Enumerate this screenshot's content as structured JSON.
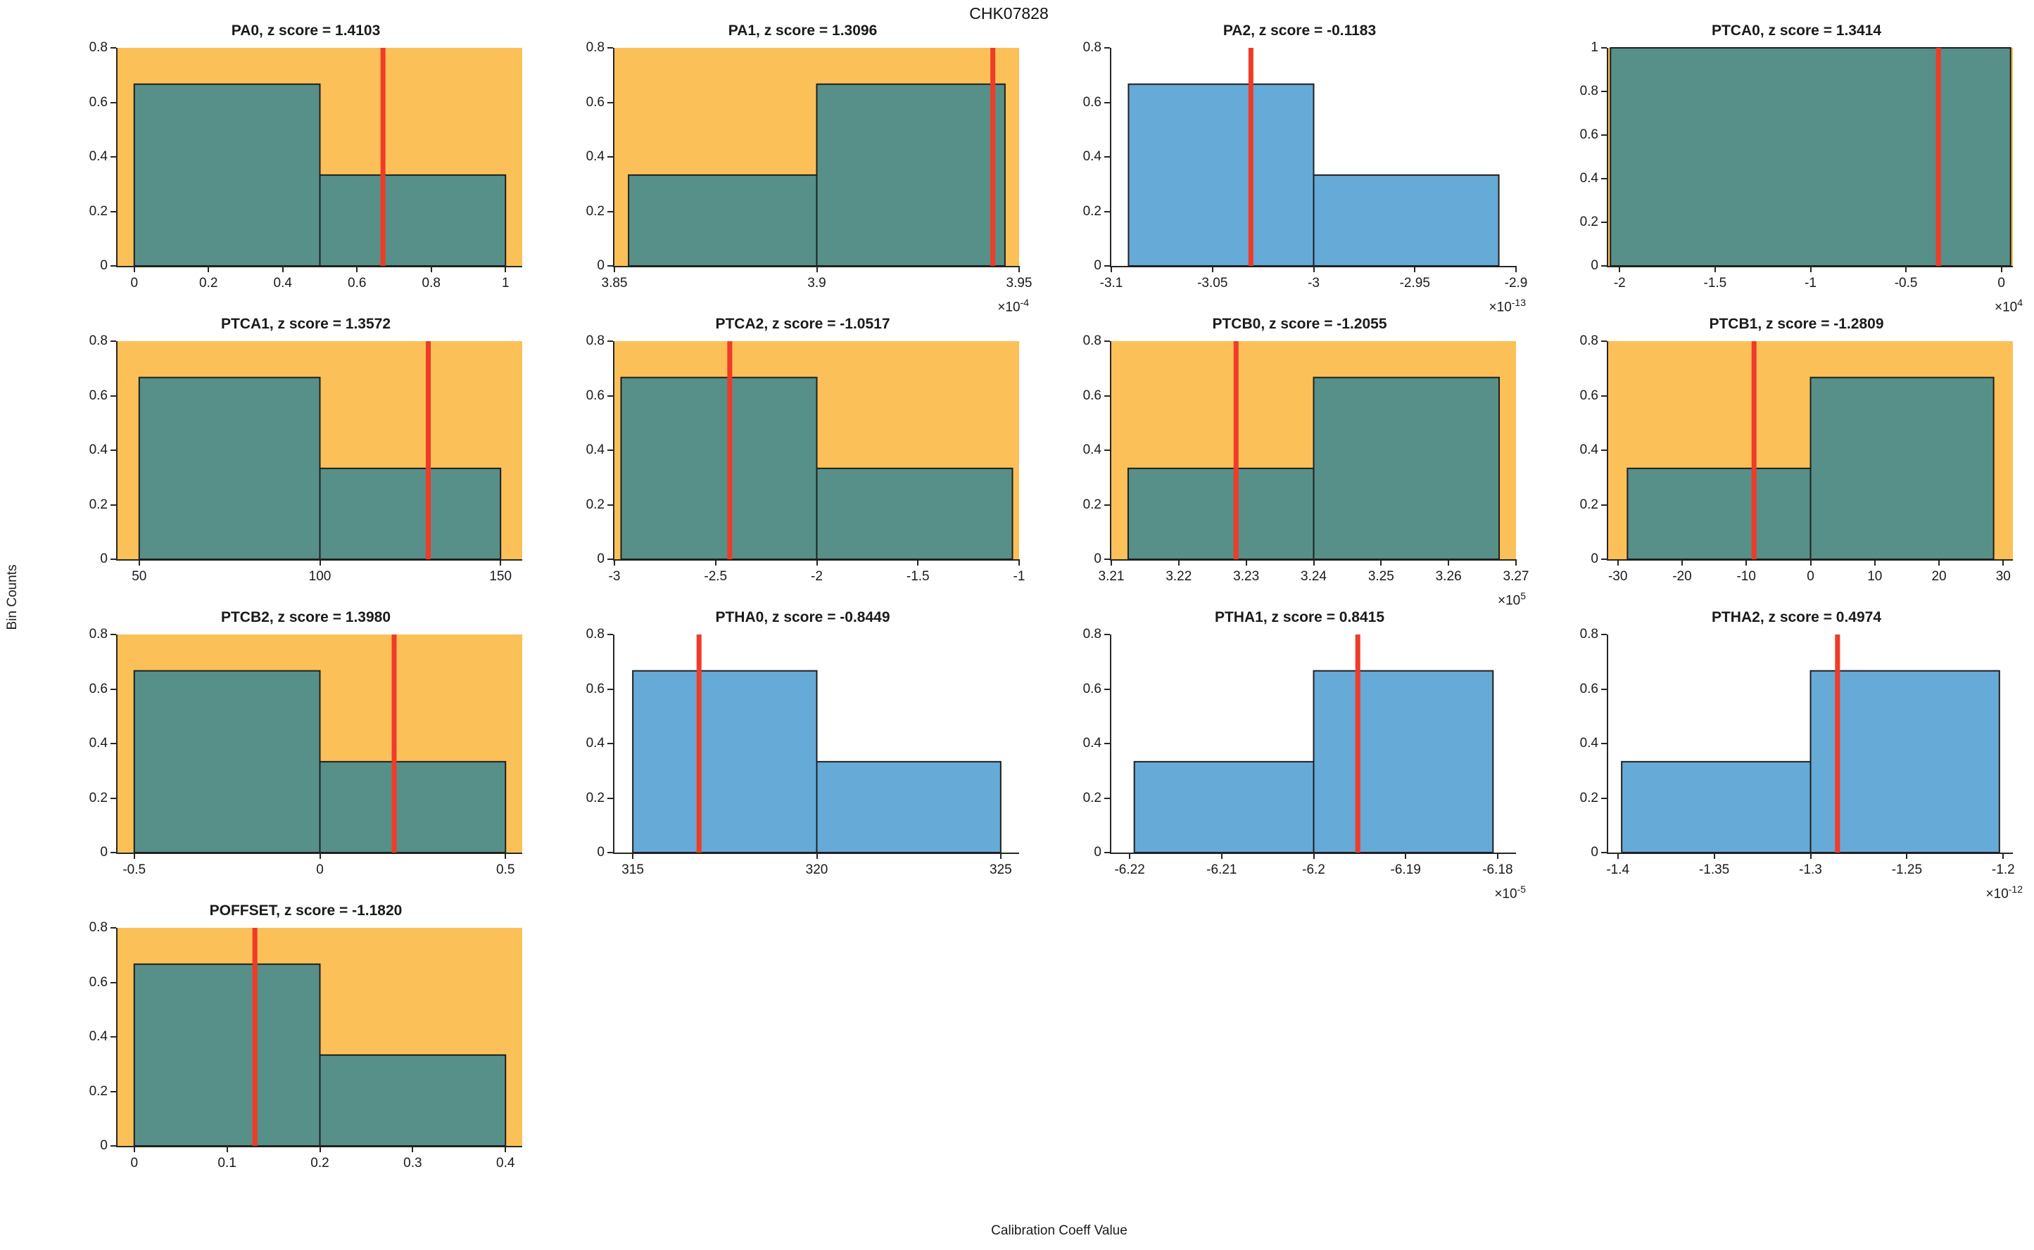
{
  "figure": {
    "title": "CHK07828",
    "xlabel": "Calibration Coeff Value",
    "ylabel": "Bin Counts",
    "exponent_prefix": "×10"
  },
  "colors": {
    "flagged_bg": "#fcc058",
    "normal_bg": "#ffffff",
    "flagged_bar": "#579089",
    "normal_bar": "#66aad7",
    "bar_edge": "#1f1f1f",
    "red_line": "#ef3b27",
    "axis": "#262626"
  },
  "chart_data": [
    {
      "type": "histogram",
      "name": "PA0",
      "title": "PA0, z score = 1.4103",
      "z_score": 1.4103,
      "flagged": true,
      "xlim": [
        -0.045,
        1.045
      ],
      "ylim": [
        0,
        0.8
      ],
      "xticks": [
        0,
        0.2,
        0.4,
        0.6,
        0.8,
        1
      ],
      "xtick_labels": [
        "0",
        "0.2",
        "0.4",
        "0.6",
        "0.8",
        "1"
      ],
      "yticks": [
        0,
        0.2,
        0.4,
        0.6,
        0.8
      ],
      "ytick_labels": [
        "0",
        "0.2",
        "0.4",
        "0.6",
        "0.8"
      ],
      "exponent": null,
      "bins": [
        {
          "x0": 0,
          "x1": 0.5,
          "height": 0.6667
        },
        {
          "x0": 0.5,
          "x1": 1,
          "height": 0.3333
        }
      ],
      "red_line_x": 0.67
    },
    {
      "type": "histogram",
      "name": "PA1",
      "title": "PA1, z score = 1.3096",
      "z_score": 1.3096,
      "flagged": true,
      "xlim": [
        3.85,
        3.95
      ],
      "ylim": [
        0,
        0.8
      ],
      "xticks": [
        3.85,
        3.9,
        3.95
      ],
      "xtick_labels": [
        "3.85",
        "3.9",
        "3.95"
      ],
      "yticks": [
        0,
        0.2,
        0.4,
        0.6,
        0.8
      ],
      "ytick_labels": [
        "0",
        "0.2",
        "0.4",
        "0.6",
        "0.8"
      ],
      "exponent": "-4",
      "bins": [
        {
          "x0": 3.8535,
          "x1": 3.9,
          "height": 0.3333
        },
        {
          "x0": 3.9,
          "x1": 3.9465,
          "height": 0.6667
        }
      ],
      "red_line_x": 3.9435
    },
    {
      "type": "histogram",
      "name": "PA2",
      "title": "PA2, z score = -0.1183",
      "z_score": -0.1183,
      "flagged": false,
      "xlim": [
        -3.1,
        -2.9
      ],
      "ylim": [
        0,
        0.8
      ],
      "xticks": [
        -3.1,
        -3.05,
        -3,
        -2.95,
        -2.9
      ],
      "xtick_labels": [
        "-3.1",
        "-3.05",
        "-3",
        "-2.95",
        "-2.9"
      ],
      "yticks": [
        0,
        0.2,
        0.4,
        0.6,
        0.8
      ],
      "ytick_labels": [
        "0",
        "0.2",
        "0.4",
        "0.6",
        "0.8"
      ],
      "exponent": "-13",
      "bins": [
        {
          "x0": -3.0915,
          "x1": -3.0,
          "height": 0.6667
        },
        {
          "x0": -3.0,
          "x1": -2.9085,
          "height": 0.3333
        }
      ],
      "red_line_x": -3.031
    },
    {
      "type": "histogram",
      "name": "PTCA0",
      "title": "PTCA0, z score = 1.3414",
      "z_score": 1.3414,
      "flagged": true,
      "xlim": [
        -2.06,
        0.06
      ],
      "ylim": [
        0,
        1
      ],
      "xticks": [
        -2,
        -1.5,
        -1,
        -0.5,
        0
      ],
      "xtick_labels": [
        "-2",
        "-1.5",
        "-1",
        "-0.5",
        "0"
      ],
      "yticks": [
        0,
        0.2,
        0.4,
        0.6,
        0.8,
        1
      ],
      "ytick_labels": [
        "0",
        "0.2",
        "0.4",
        "0.6",
        "0.8",
        "1"
      ],
      "exponent": "4",
      "bins": [
        {
          "x0": -2.048,
          "x1": 0.048,
          "height": 1.0
        }
      ],
      "red_line_x": -0.33
    },
    {
      "type": "histogram",
      "name": "PTCA1",
      "title": "PTCA1, z score = 1.3572",
      "z_score": 1.3572,
      "flagged": true,
      "xlim": [
        44,
        156
      ],
      "ylim": [
        0,
        0.8
      ],
      "xticks": [
        50,
        100,
        150
      ],
      "xtick_labels": [
        "50",
        "100",
        "150"
      ],
      "yticks": [
        0,
        0.2,
        0.4,
        0.6,
        0.8
      ],
      "ytick_labels": [
        "0",
        "0.2",
        "0.4",
        "0.6",
        "0.8"
      ],
      "exponent": null,
      "bins": [
        {
          "x0": 50,
          "x1": 100,
          "height": 0.6667
        },
        {
          "x0": 100,
          "x1": 150,
          "height": 0.3333
        }
      ],
      "red_line_x": 130
    },
    {
      "type": "histogram",
      "name": "PTCA2",
      "title": "PTCA2, z score = -1.0517",
      "z_score": -1.0517,
      "flagged": true,
      "xlim": [
        -3.0,
        -1.0
      ],
      "ylim": [
        0,
        0.8
      ],
      "xticks": [
        -3,
        -2.5,
        -2,
        -1.5,
        -1
      ],
      "xtick_labels": [
        "-3",
        "-2.5",
        "-2",
        "-1.5",
        "-1"
      ],
      "yticks": [
        0,
        0.2,
        0.4,
        0.6,
        0.8
      ],
      "ytick_labels": [
        "0",
        "0.2",
        "0.4",
        "0.6",
        "0.8"
      ],
      "exponent": null,
      "bins": [
        {
          "x0": -2.967,
          "x1": -2.0,
          "height": 0.6667
        },
        {
          "x0": -2.0,
          "x1": -1.033,
          "height": 0.3333
        }
      ],
      "red_line_x": -2.43
    },
    {
      "type": "histogram",
      "name": "PTCB0",
      "title": "PTCB0, z score = -1.2055",
      "z_score": -1.2055,
      "flagged": true,
      "xlim": [
        3.21,
        3.27
      ],
      "ylim": [
        0,
        0.8
      ],
      "xticks": [
        3.21,
        3.22,
        3.23,
        3.24,
        3.25,
        3.26,
        3.27
      ],
      "xtick_labels": [
        "3.21",
        "3.22",
        "3.23",
        "3.24",
        "3.25",
        "3.26",
        "3.27"
      ],
      "yticks": [
        0,
        0.2,
        0.4,
        0.6,
        0.8
      ],
      "ytick_labels": [
        "0",
        "0.2",
        "0.4",
        "0.6",
        "0.8"
      ],
      "exponent": "5",
      "bins": [
        {
          "x0": 3.2125,
          "x1": 3.24,
          "height": 0.3333
        },
        {
          "x0": 3.24,
          "x1": 3.2675,
          "height": 0.6667
        }
      ],
      "red_line_x": 3.2285
    },
    {
      "type": "histogram",
      "name": "PTCB1",
      "title": "PTCB1, z score = -1.2809",
      "z_score": -1.2809,
      "flagged": true,
      "xlim": [
        -31.5,
        31.5
      ],
      "ylim": [
        0,
        0.8
      ],
      "xticks": [
        -30,
        -20,
        -10,
        0,
        10,
        20,
        30
      ],
      "xtick_labels": [
        "-30",
        "-20",
        "-10",
        "0",
        "10",
        "20",
        "30"
      ],
      "yticks": [
        0,
        0.2,
        0.4,
        0.6,
        0.8
      ],
      "ytick_labels": [
        "0",
        "0.2",
        "0.4",
        "0.6",
        "0.8"
      ],
      "exponent": null,
      "bins": [
        {
          "x0": -28.5,
          "x1": 0,
          "height": 0.3333
        },
        {
          "x0": 0,
          "x1": 28.5,
          "height": 0.6667
        }
      ],
      "red_line_x": -8.8
    },
    {
      "type": "histogram",
      "name": "PTCB2",
      "title": "PTCB2, z score = 1.3980",
      "z_score": 1.398,
      "flagged": true,
      "xlim": [
        -0.545,
        0.545
      ],
      "ylim": [
        0,
        0.8
      ],
      "xticks": [
        -0.5,
        0,
        0.5
      ],
      "xtick_labels": [
        "-0.5",
        "0",
        "0.5"
      ],
      "yticks": [
        0,
        0.2,
        0.4,
        0.6,
        0.8
      ],
      "ytick_labels": [
        "0",
        "0.2",
        "0.4",
        "0.6",
        "0.8"
      ],
      "exponent": null,
      "bins": [
        {
          "x0": -0.5,
          "x1": 0,
          "height": 0.6667
        },
        {
          "x0": 0,
          "x1": 0.5,
          "height": 0.3333
        }
      ],
      "red_line_x": 0.2
    },
    {
      "type": "histogram",
      "name": "PTHA0",
      "title": "PTHA0, z score = -0.8449",
      "z_score": -0.8449,
      "flagged": false,
      "xlim": [
        314.5,
        325.5
      ],
      "ylim": [
        0,
        0.8
      ],
      "xticks": [
        315,
        320,
        325
      ],
      "xtick_labels": [
        "315",
        "320",
        "325"
      ],
      "yticks": [
        0,
        0.2,
        0.4,
        0.6,
        0.8
      ],
      "ytick_labels": [
        "0",
        "0.2",
        "0.4",
        "0.6",
        "0.8"
      ],
      "exponent": null,
      "bins": [
        {
          "x0": 315,
          "x1": 320,
          "height": 0.6667
        },
        {
          "x0": 320,
          "x1": 325,
          "height": 0.3333
        }
      ],
      "red_line_x": 316.8
    },
    {
      "type": "histogram",
      "name": "PTHA1",
      "title": "PTHA1, z score = 0.8415",
      "z_score": 0.8415,
      "flagged": false,
      "xlim": [
        -6.222,
        -6.178
      ],
      "ylim": [
        0,
        0.8
      ],
      "xticks": [
        -6.22,
        -6.21,
        -6.2,
        -6.19,
        -6.18
      ],
      "xtick_labels": [
        "-6.22",
        "-6.21",
        "-6.2",
        "-6.19",
        "-6.18"
      ],
      "yticks": [
        0,
        0.2,
        0.4,
        0.6,
        0.8
      ],
      "ytick_labels": [
        "0",
        "0.2",
        "0.4",
        "0.6",
        "0.8"
      ],
      "exponent": "-5",
      "bins": [
        {
          "x0": -6.2195,
          "x1": -6.2,
          "height": 0.3333
        },
        {
          "x0": -6.2,
          "x1": -6.1805,
          "height": 0.6667
        }
      ],
      "red_line_x": -6.1952
    },
    {
      "type": "histogram",
      "name": "PTHA2",
      "title": "PTHA2, z score = 0.4974",
      "z_score": 0.4974,
      "flagged": false,
      "xlim": [
        -1.405,
        -1.195
      ],
      "ylim": [
        0,
        0.8
      ],
      "xticks": [
        -1.4,
        -1.35,
        -1.3,
        -1.25,
        -1.2
      ],
      "xtick_labels": [
        "-1.4",
        "-1.35",
        "-1.3",
        "-1.25",
        "-1.2"
      ],
      "yticks": [
        0,
        0.2,
        0.4,
        0.6,
        0.8
      ],
      "ytick_labels": [
        "0",
        "0.2",
        "0.4",
        "0.6",
        "0.8"
      ],
      "exponent": "-12",
      "bins": [
        {
          "x0": -1.398,
          "x1": -1.3,
          "height": 0.3333
        },
        {
          "x0": -1.3,
          "x1": -1.202,
          "height": 0.6667
        }
      ],
      "red_line_x": -1.286
    },
    {
      "type": "histogram",
      "name": "POFFSET",
      "title": "POFFSET, z score = -1.1820",
      "z_score": -1.182,
      "flagged": true,
      "xlim": [
        -0.018,
        0.418
      ],
      "ylim": [
        0,
        0.8
      ],
      "xticks": [
        0,
        0.1,
        0.2,
        0.3,
        0.4
      ],
      "xtick_labels": [
        "0",
        "0.1",
        "0.2",
        "0.3",
        "0.4"
      ],
      "yticks": [
        0,
        0.2,
        0.4,
        0.6,
        0.8
      ],
      "ytick_labels": [
        "0",
        "0.2",
        "0.4",
        "0.6",
        "0.8"
      ],
      "exponent": null,
      "bins": [
        {
          "x0": 0,
          "x1": 0.2,
          "height": 0.6667
        },
        {
          "x0": 0.2,
          "x1": 0.4,
          "height": 0.3333
        }
      ],
      "red_line_x": 0.13
    }
  ]
}
